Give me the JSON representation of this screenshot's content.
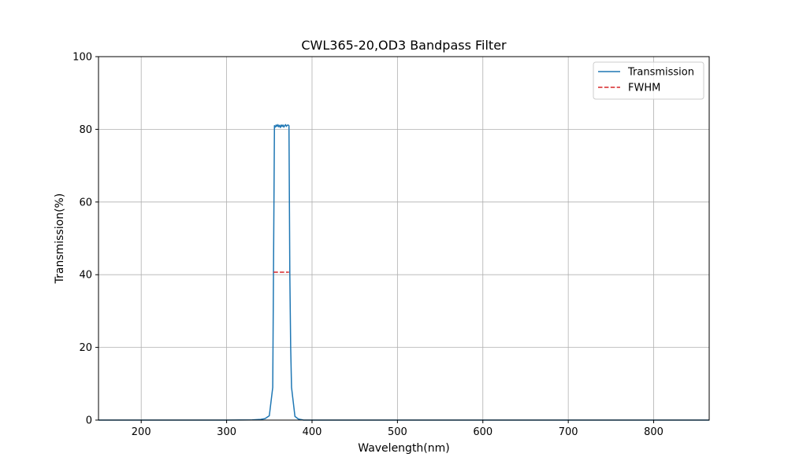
{
  "chart_data": {
    "type": "line",
    "title": "CWL365-20,OD3 Bandpass Filter",
    "xlabel": "Wavelength(nm)",
    "ylabel": "Transmission(%)",
    "xlim": [
      150,
      865
    ],
    "ylim": [
      0,
      100
    ],
    "xticks": [
      200,
      300,
      400,
      500,
      600,
      700,
      800
    ],
    "yticks": [
      0,
      20,
      40,
      60,
      80,
      100
    ],
    "grid": true,
    "legend_position": "top-right",
    "series": [
      {
        "name": "Transmission",
        "color": "#1f77b4",
        "style": "solid",
        "x": [
          150,
          200,
          250,
          300,
          330,
          340,
          345,
          350,
          354,
          355,
          356,
          357,
          358,
          359,
          360,
          361,
          362,
          363,
          364,
          365,
          366,
          367,
          368,
          369,
          370,
          371,
          372,
          373,
          374,
          375,
          376,
          380,
          384,
          388,
          390,
          400,
          450,
          500,
          600,
          700,
          800,
          865
        ],
        "y": [
          0,
          0,
          0,
          0,
          0.05,
          0.2,
          0.4,
          1.2,
          9,
          45,
          81,
          80.6,
          81.2,
          80.8,
          81.3,
          80.7,
          81.1,
          80.5,
          81.2,
          80.8,
          81.2,
          80.6,
          81.0,
          81.3,
          80.8,
          81.1,
          81.2,
          81.0,
          40,
          20,
          9,
          1,
          0.3,
          0.1,
          0,
          0,
          0,
          0,
          0,
          0,
          0,
          0
        ]
      },
      {
        "name": "FWHM",
        "color": "#d62728",
        "style": "dashed",
        "x": [
          355,
          373
        ],
        "y": [
          40.7,
          40.7
        ]
      }
    ]
  }
}
